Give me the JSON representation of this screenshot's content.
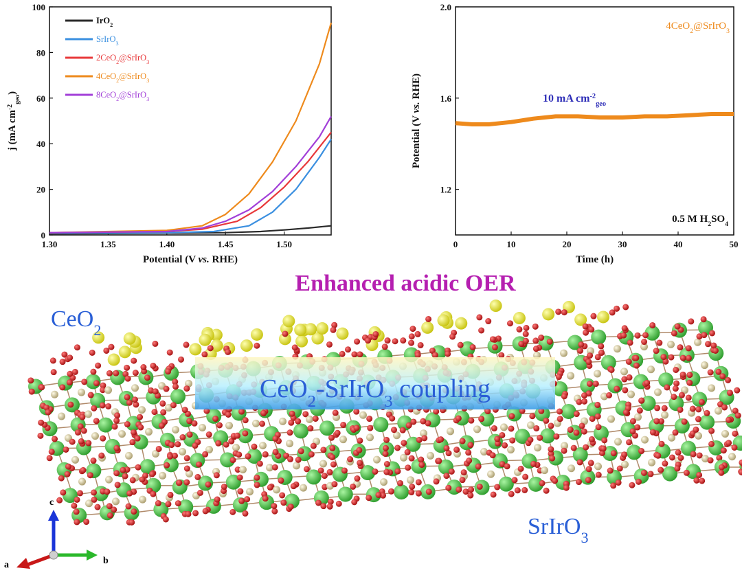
{
  "headline": "Enhanced acidic OER",
  "coupling_label": "CeO2-SrIrO3 coupling",
  "structure_labels": {
    "ceo2": "CeO2",
    "srirO3": "SrIrO3"
  },
  "axes_triad": {
    "c": "c",
    "a": "a",
    "b": "b"
  },
  "colors": {
    "headline": "#b51fb0",
    "structure_label": "#2a5fd6",
    "arrow": "#c89a10",
    "sr_atom": "#3fbf3c",
    "o_atom": "#c81818",
    "ir_atom": "#cdbf8e",
    "ce_atom": "#e8e620"
  },
  "chart_data": [
    {
      "type": "line",
      "xlabel": "Potential (V vs. RHE)",
      "ylabel": "j (mA cm-2geo)",
      "xlim": [
        1.3,
        1.54
      ],
      "ylim": [
        0,
        100
      ],
      "x_ticks": [
        "1.30",
        "1.35",
        "1.40",
        "1.45",
        "1.50"
      ],
      "y_ticks": [
        "0",
        "20",
        "40",
        "60",
        "80",
        "100"
      ],
      "legend_position": "top-left",
      "series": [
        {
          "name": "IrO2",
          "color": "#2a2a2a",
          "x": [
            1.3,
            1.4,
            1.45,
            1.48,
            1.5,
            1.52,
            1.54
          ],
          "y": [
            0.5,
            0.8,
            1.0,
            1.5,
            2.2,
            3.0,
            4.0
          ]
        },
        {
          "name": "SrIrO3",
          "color": "#3a8fe0",
          "x": [
            1.3,
            1.4,
            1.44,
            1.47,
            1.49,
            1.51,
            1.53,
            1.54
          ],
          "y": [
            0.8,
            1.0,
            1.5,
            4.0,
            10.0,
            20.0,
            34.0,
            42.0
          ]
        },
        {
          "name": "2CeO2@SrIrO3",
          "color": "#e8383a",
          "x": [
            1.3,
            1.4,
            1.43,
            1.46,
            1.48,
            1.5,
            1.52,
            1.54
          ],
          "y": [
            1.0,
            1.5,
            2.5,
            6.0,
            12.0,
            21.0,
            32.0,
            45.0
          ]
        },
        {
          "name": "4CeO2@SrIrO3",
          "color": "#ee8a1c",
          "x": [
            1.3,
            1.4,
            1.43,
            1.45,
            1.47,
            1.49,
            1.51,
            1.53,
            1.54
          ],
          "y": [
            1.0,
            2.0,
            4.0,
            9.0,
            18.0,
            32.0,
            50.0,
            75.0,
            93.0
          ]
        },
        {
          "name": "8CeO2@SrIrO3",
          "color": "#a23fd8",
          "x": [
            1.3,
            1.4,
            1.43,
            1.45,
            1.47,
            1.49,
            1.51,
            1.53,
            1.54
          ],
          "y": [
            1.0,
            1.5,
            3.0,
            6.0,
            11.0,
            19.0,
            30.0,
            43.0,
            52.0
          ]
        }
      ]
    },
    {
      "type": "line",
      "xlabel": "Time (h)",
      "ylabel": "Potential (V vs. RHE)",
      "xlim": [
        0,
        50
      ],
      "ylim": [
        1.0,
        2.0
      ],
      "x_ticks": [
        "0",
        "10",
        "20",
        "30",
        "40",
        "50"
      ],
      "y_ticks": [
        "1.2",
        "1.6",
        "2.0"
      ],
      "legend_position": "top-right",
      "annotations": {
        "current_density": "10 mA cm-2geo",
        "electrolyte": "0.5 M H2SO4"
      },
      "series": [
        {
          "name": "4CeO2@SrIrO3",
          "color": "#ee8a1c",
          "x": [
            0,
            3,
            6,
            10,
            14,
            18,
            22,
            26,
            30,
            34,
            38,
            42,
            46,
            50
          ],
          "y": [
            1.49,
            1.485,
            1.485,
            1.495,
            1.51,
            1.52,
            1.52,
            1.515,
            1.515,
            1.52,
            1.52,
            1.525,
            1.53,
            1.53
          ]
        }
      ]
    }
  ]
}
